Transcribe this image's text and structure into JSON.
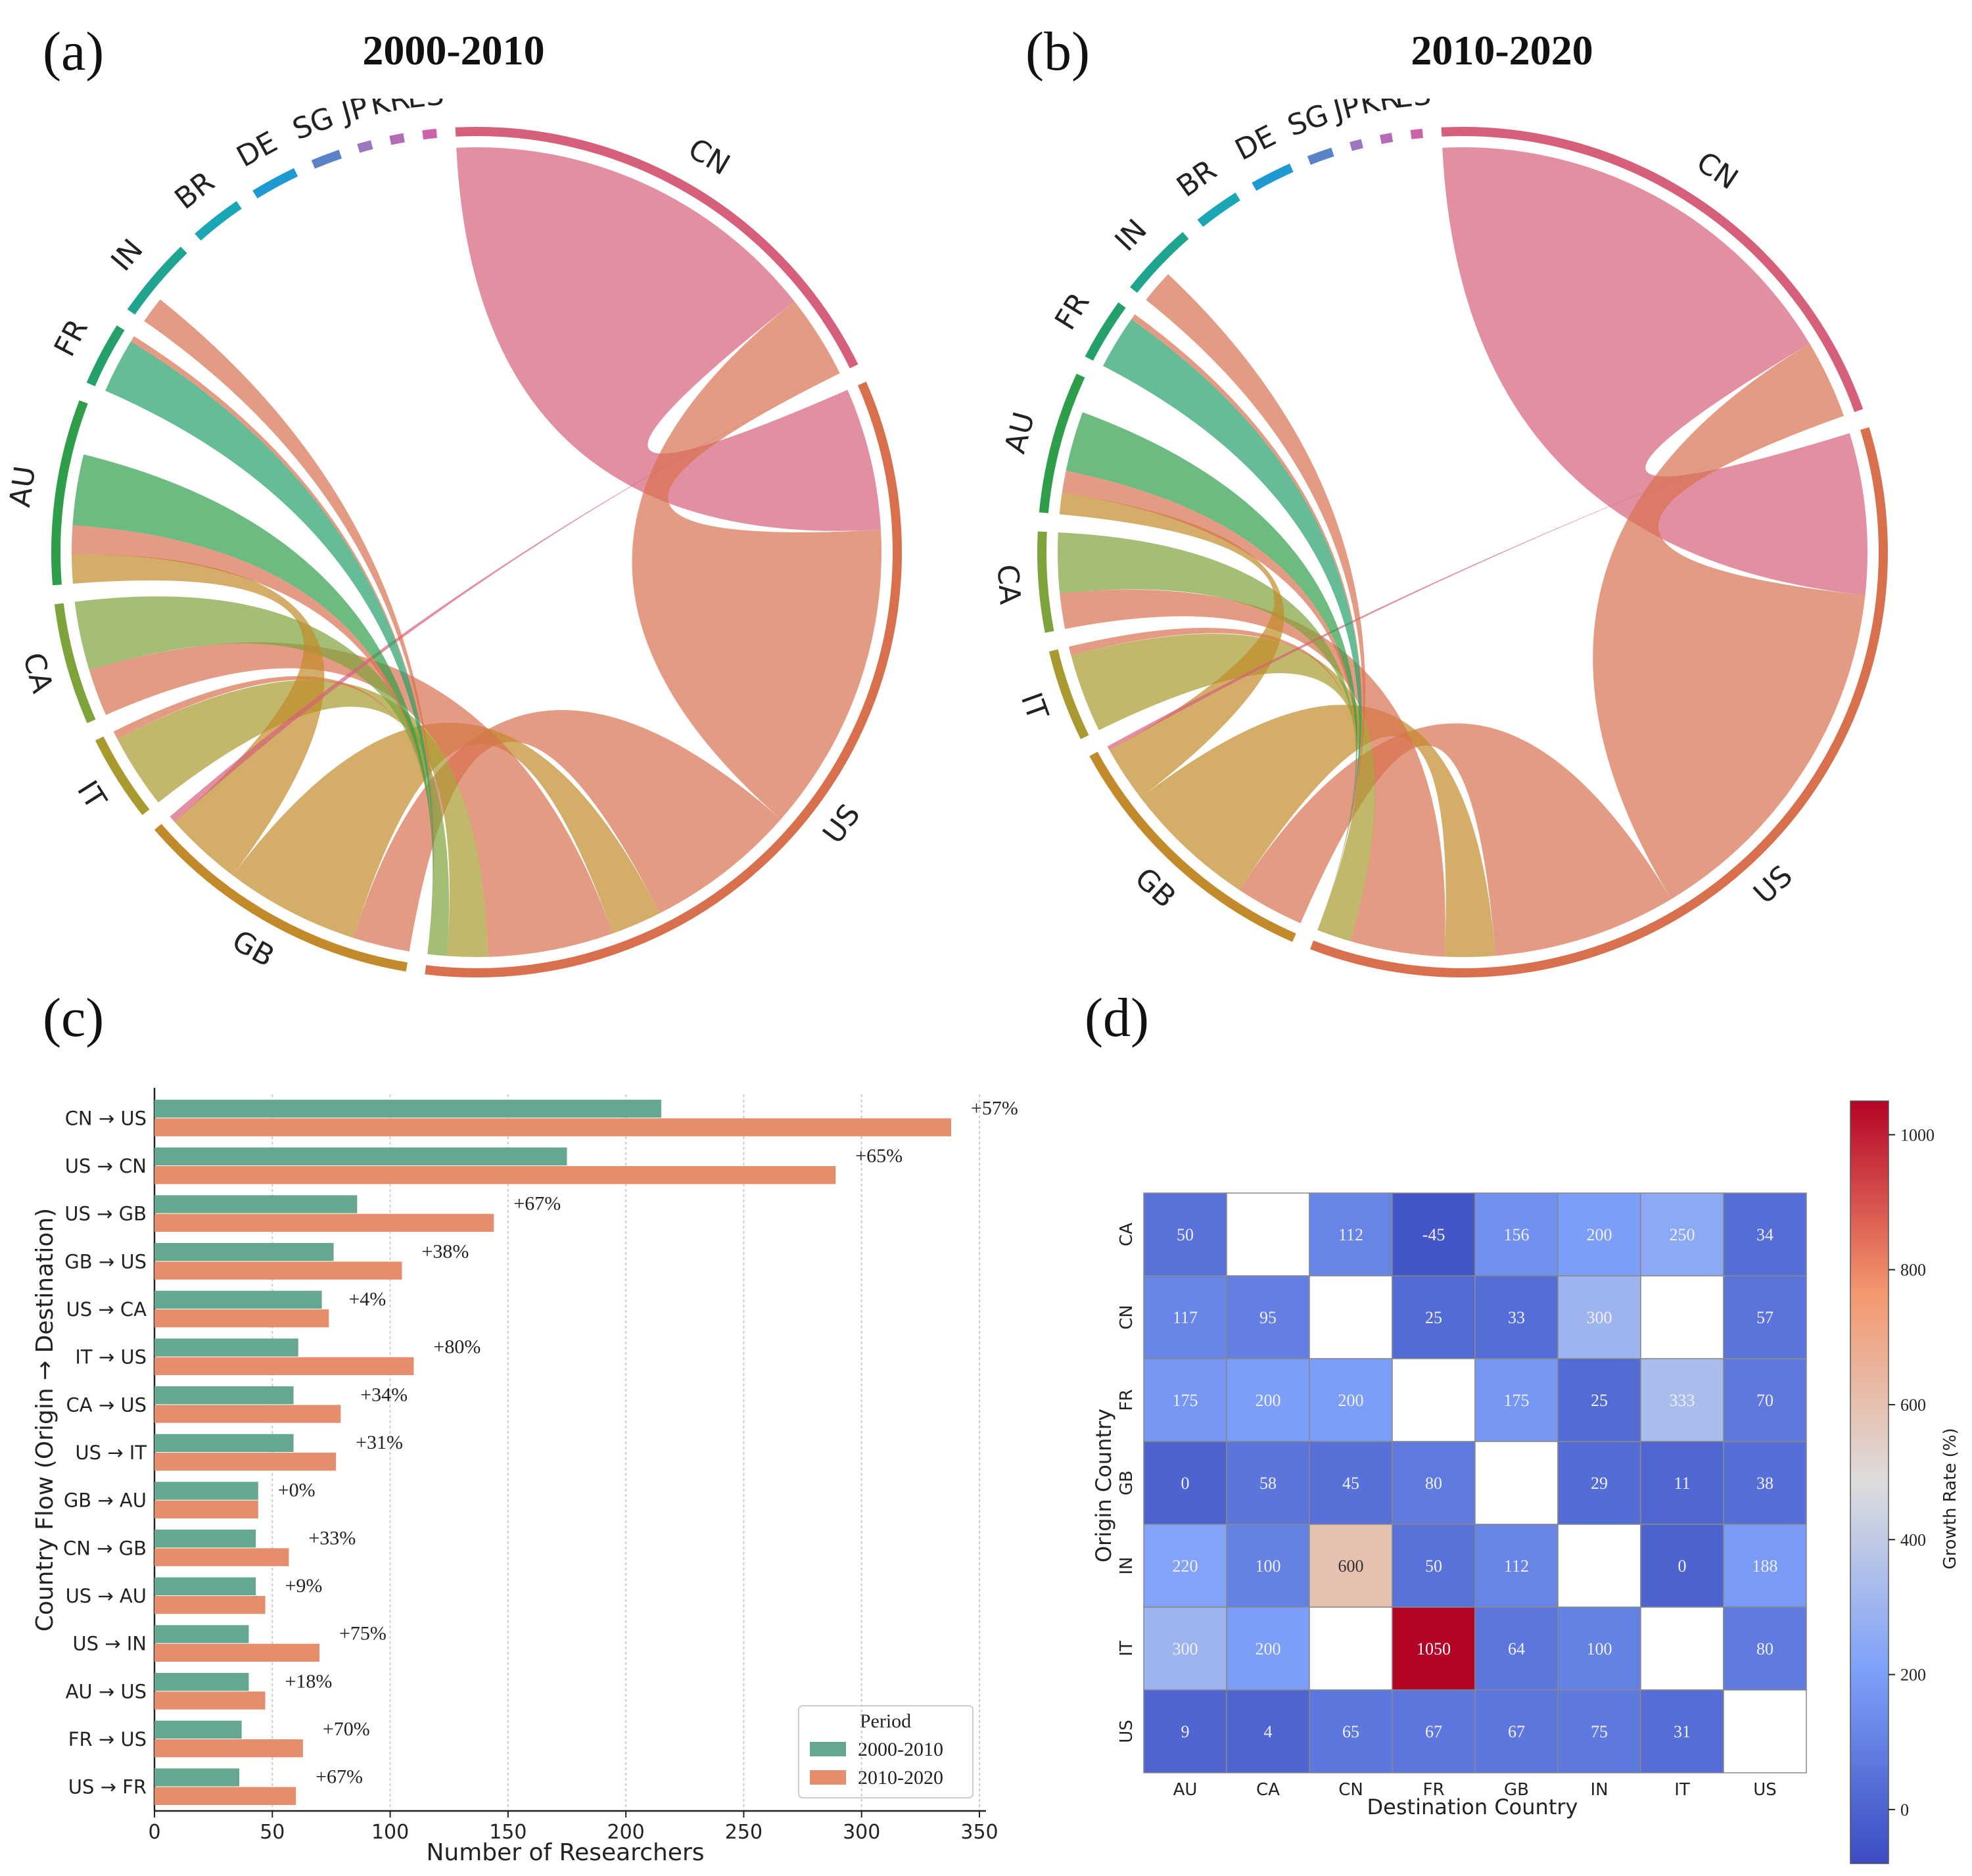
{
  "panels": {
    "a": {
      "label": "(a)",
      "title": "2000-2010"
    },
    "b": {
      "label": "(b)",
      "title": "2010-2020"
    },
    "c": {
      "label": "(c)"
    },
    "d": {
      "label": "(d)"
    }
  },
  "countries": [
    "CN",
    "US",
    "GB",
    "IT",
    "CA",
    "AU",
    "FR",
    "IN",
    "BR",
    "DE",
    "SG",
    "JP",
    "KR",
    "ES"
  ],
  "country_colors": {
    "CN": "#d6607a",
    "US": "#d8704e",
    "GB": "#c28a2a",
    "IT": "#a89a2e",
    "CA": "#7ea33a",
    "AU": "#2f9e4a",
    "FR": "#25a06a",
    "IN": "#1fa58f",
    "BR": "#1aa6b4",
    "DE": "#1f9ad0",
    "SG": "#5b82c6",
    "JP": "#9a78c0",
    "KR": "#b56ab8",
    "ES": "#cc62a8"
  },
  "chart_data": [
    {
      "type": "chord",
      "title": "2000-2010",
      "groups": [
        "CN",
        "US",
        "GB",
        "IT",
        "CA",
        "AU",
        "FR",
        "IN",
        "BR",
        "DE",
        "SG",
        "JP",
        "KR",
        "ES"
      ],
      "group_totals": [
        420,
        760,
        250,
        75,
        105,
        160,
        55,
        70,
        45,
        40,
        25,
        12,
        12,
        12
      ],
      "flows": [
        {
          "from": "CN",
          "to": "US",
          "value": 215
        },
        {
          "from": "US",
          "to": "CN",
          "value": 175
        },
        {
          "from": "US",
          "to": "GB",
          "value": 86
        },
        {
          "from": "GB",
          "to": "US",
          "value": 76
        },
        {
          "from": "US",
          "to": "CA",
          "value": 71
        },
        {
          "from": "IT",
          "to": "US",
          "value": 61
        },
        {
          "from": "CA",
          "to": "US",
          "value": 59
        },
        {
          "from": "US",
          "to": "IT",
          "value": 59
        },
        {
          "from": "GB",
          "to": "AU",
          "value": 44
        },
        {
          "from": "CN",
          "to": "GB",
          "value": 43
        },
        {
          "from": "US",
          "to": "AU",
          "value": 43
        },
        {
          "from": "US",
          "to": "IN",
          "value": 40
        },
        {
          "from": "AU",
          "to": "US",
          "value": 40
        },
        {
          "from": "FR",
          "to": "US",
          "value": 37
        },
        {
          "from": "US",
          "to": "FR",
          "value": 36
        }
      ]
    },
    {
      "type": "chord",
      "title": "2010-2020",
      "groups": [
        "CN",
        "US",
        "GB",
        "IT",
        "CA",
        "AU",
        "FR",
        "IN",
        "BR",
        "DE",
        "SG",
        "JP",
        "KR",
        "ES"
      ],
      "group_totals": [
        640,
        1120,
        330,
        110,
        120,
        170,
        75,
        90,
        55,
        50,
        30,
        14,
        14,
        14
      ],
      "flows": [
        {
          "from": "CN",
          "to": "US",
          "value": 338
        },
        {
          "from": "US",
          "to": "CN",
          "value": 289
        },
        {
          "from": "US",
          "to": "GB",
          "value": 144
        },
        {
          "from": "GB",
          "to": "US",
          "value": 105
        },
        {
          "from": "US",
          "to": "CA",
          "value": 74
        },
        {
          "from": "IT",
          "to": "US",
          "value": 110
        },
        {
          "from": "CA",
          "to": "US",
          "value": 79
        },
        {
          "from": "US",
          "to": "IT",
          "value": 77
        },
        {
          "from": "GB",
          "to": "AU",
          "value": 44
        },
        {
          "from": "CN",
          "to": "GB",
          "value": 57
        },
        {
          "from": "US",
          "to": "AU",
          "value": 47
        },
        {
          "from": "US",
          "to": "IN",
          "value": 70
        },
        {
          "from": "AU",
          "to": "US",
          "value": 47
        },
        {
          "from": "FR",
          "to": "US",
          "value": 63
        },
        {
          "from": "US",
          "to": "FR",
          "value": 60
        }
      ]
    },
    {
      "type": "bar",
      "orientation": "horizontal",
      "categories": [
        "CN → US",
        "US → CN",
        "US → GB",
        "GB → US",
        "US → CA",
        "IT → US",
        "CA → US",
        "US → IT",
        "GB → AU",
        "CN → GB",
        "US → AU",
        "US → IN",
        "AU → US",
        "FR → US",
        "US → FR"
      ],
      "series": [
        {
          "name": "2000-2010",
          "color": "#66a88f",
          "values": [
            215,
            175,
            86,
            76,
            71,
            61,
            59,
            59,
            44,
            43,
            43,
            40,
            40,
            37,
            36
          ]
        },
        {
          "name": "2010-2020",
          "color": "#e48e6e",
          "values": [
            338,
            289,
            144,
            105,
            74,
            110,
            79,
            77,
            44,
            57,
            47,
            70,
            47,
            63,
            60
          ]
        }
      ],
      "annotations": [
        "+57%",
        "+65%",
        "+67%",
        "+38%",
        "+4%",
        "+80%",
        "+34%",
        "+31%",
        "+0%",
        "+33%",
        "+9%",
        "+75%",
        "+18%",
        "+70%",
        "+67%"
      ],
      "xlabel": "Number of Researchers",
      "ylabel": "Country Flow (Origin → Destination)",
      "xlim": [
        0,
        350
      ],
      "xticks": [
        0,
        50,
        100,
        150,
        200,
        250,
        300,
        350
      ],
      "legend_title": "Period",
      "legend_position": "bottom-right",
      "grid": "x"
    },
    {
      "type": "heatmap",
      "rows": [
        "CA",
        "CN",
        "FR",
        "GB",
        "IN",
        "IT",
        "US"
      ],
      "cols": [
        "AU",
        "CA",
        "CN",
        "FR",
        "GB",
        "IN",
        "IT",
        "US"
      ],
      "values": [
        [
          50,
          null,
          112,
          -45,
          156,
          200,
          250,
          34
        ],
        [
          117,
          95,
          null,
          25,
          33,
          300,
          null,
          57
        ],
        [
          175,
          200,
          200,
          null,
          175,
          25,
          333,
          70
        ],
        [
          0,
          58,
          45,
          80,
          null,
          29,
          11,
          38
        ],
        [
          220,
          100,
          600,
          50,
          112,
          null,
          0,
          188
        ],
        [
          300,
          200,
          null,
          1050,
          64,
          100,
          null,
          80
        ],
        [
          9,
          4,
          65,
          67,
          67,
          75,
          31,
          null
        ]
      ],
      "xlabel": "Destination Country",
      "ylabel": "Origin Country",
      "colorbar_label": "Growth Rate (%)",
      "colorbar_range": [
        -80,
        1050
      ],
      "colorbar_ticks": [
        0,
        200,
        400,
        600,
        800,
        1000
      ]
    }
  ]
}
